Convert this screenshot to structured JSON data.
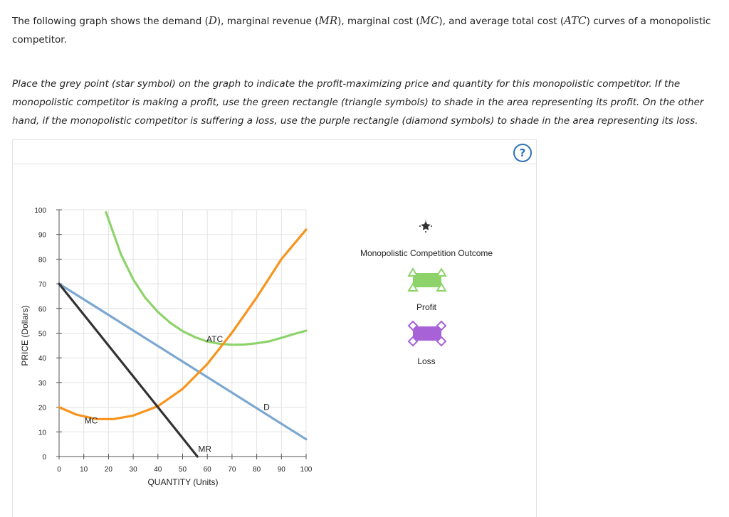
{
  "intro": {
    "part1": "The following graph shows the demand (",
    "d_sym": "D",
    "part2": "), marginal revenue (",
    "mr_sym": "MR",
    "part3": "), marginal cost (",
    "mc_sym": "MC",
    "part4": "), and average total cost (",
    "atc_sym": "ATC",
    "part5": ") curves of a monopolistic competitor."
  },
  "instructions": "Place the grey point (star symbol) on the graph to indicate the profit-maximizing price and quantity for this monopolistic competitor. If the monopolistic competitor is making a profit, use the green rectangle (triangle symbols) to shade in the area representing its profit. On the other hand, if the monopolistic competitor is suffering a loss, use the purple rectangle (diamond symbols) to shade in the area representing its loss.",
  "help_label": "?",
  "colors": {
    "demand": "#7ba7d0",
    "mr": "#333333",
    "mc": "#f7941d",
    "atc": "#8dd36a",
    "profit": "#8dd36a",
    "loss": "#a862d8",
    "point": "#333333"
  },
  "legend": {
    "outcome_label": "Monopolistic Competition Outcome",
    "profit_label": "Profit",
    "loss_label": "Loss"
  },
  "chart_data": {
    "type": "line",
    "xlabel": "QUANTITY (Units)",
    "ylabel": "PRICE (Dollars)",
    "xlim": [
      0,
      100
    ],
    "ylim": [
      0,
      100
    ],
    "xticks": [
      0,
      10,
      20,
      30,
      40,
      50,
      60,
      70,
      80,
      90,
      100
    ],
    "yticks": [
      0,
      10,
      20,
      30,
      40,
      50,
      60,
      70,
      80,
      90,
      100
    ],
    "series": [
      {
        "name": "D",
        "label_pos": [
          84,
          20
        ],
        "points": [
          [
            0,
            70
          ],
          [
            100,
            7
          ]
        ]
      },
      {
        "name": "MR",
        "label_pos": [
          59,
          3
        ],
        "points": [
          [
            0,
            70
          ],
          [
            56,
            0
          ]
        ]
      },
      {
        "name": "MC",
        "label_pos": [
          13,
          14.5
        ],
        "points": [
          [
            0,
            20
          ],
          [
            7,
            17
          ],
          [
            15,
            15.2
          ],
          [
            22,
            15.2
          ],
          [
            30,
            16.6
          ],
          [
            40,
            20.4
          ],
          [
            50,
            27.4
          ],
          [
            60,
            37.5
          ],
          [
            70,
            50.2
          ],
          [
            80,
            64.5
          ],
          [
            90,
            80
          ],
          [
            100,
            92
          ]
        ]
      },
      {
        "name": "ATC",
        "label_pos": [
          63,
          47.5
        ],
        "points": [
          [
            19,
            99
          ],
          [
            25,
            82
          ],
          [
            30,
            71.8
          ],
          [
            35,
            64.2
          ],
          [
            40,
            58.6
          ],
          [
            45,
            54.2
          ],
          [
            50,
            50.8
          ],
          [
            55,
            48.4
          ],
          [
            60,
            46.6
          ],
          [
            65,
            45.7
          ],
          [
            70,
            45.3
          ],
          [
            75,
            45.4
          ],
          [
            80,
            45.9
          ],
          [
            85,
            46.7
          ],
          [
            90,
            48.1
          ],
          [
            95,
            49.6
          ],
          [
            100,
            51
          ]
        ]
      }
    ]
  }
}
